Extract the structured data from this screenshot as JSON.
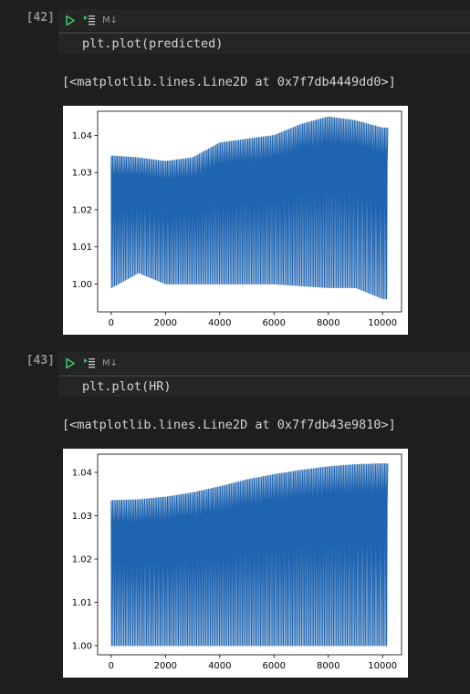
{
  "cells": [
    {
      "exec_count": "[42]",
      "toolbar": {
        "markdown_label": "M↓"
      },
      "code": "plt.plot(predicted)",
      "output_text": "[<matplotlib.lines.Line2D at 0x7f7db4449dd0>]",
      "chart_data": {
        "type": "line",
        "x": [
          0,
          1000,
          2000,
          3000,
          4000,
          5000,
          6000,
          7000,
          8000,
          9000,
          10000
        ],
        "series": [
          {
            "upper": [
              1.0345,
              1.034,
              1.033,
              1.034,
              1.038,
              1.039,
              1.04,
              1.043,
              1.045,
              1.044,
              1.042
            ],
            "lower": [
              0.999,
              1.003,
              1.0,
              1.0,
              1.0,
              1.0,
              1.0,
              0.9995,
              0.999,
              0.999,
              0.996
            ],
            "color": "#1f64b0"
          }
        ],
        "xlim": [
          -500,
          10700
        ],
        "ylim": [
          0.9925,
          1.0465
        ],
        "xticks": [
          "0",
          "2000",
          "4000",
          "6000",
          "8000",
          "10000"
        ],
        "yticks": [
          "1.00",
          "1.01",
          "1.02",
          "1.03",
          "1.04"
        ]
      }
    },
    {
      "exec_count": "[43]",
      "toolbar": {
        "markdown_label": "M↓"
      },
      "code": "plt.plot(HR)",
      "output_text": "[<matplotlib.lines.Line2D at 0x7f7db43e9810>]",
      "chart_data": {
        "type": "line",
        "x": [
          0,
          1000,
          2000,
          3000,
          4000,
          5000,
          6000,
          7000,
          8000,
          9000,
          10000
        ],
        "series": [
          {
            "upper": [
              1.0335,
              1.0337,
              1.0343,
              1.0353,
              1.0367,
              1.0383,
              1.0395,
              1.0405,
              1.0413,
              1.0418,
              1.042
            ],
            "lower": [
              1.0,
              1.0,
              1.0,
              1.0,
              1.0,
              1.0,
              1.0,
              1.0,
              1.0,
              1.0,
              1.0
            ],
            "color": "#1f64b0"
          }
        ],
        "xlim": [
          -500,
          10700
        ],
        "ylim": [
          0.9979,
          1.0442
        ],
        "xticks": [
          "0",
          "2000",
          "4000",
          "6000",
          "8000",
          "10000"
        ],
        "yticks": [
          "1.00",
          "1.01",
          "1.02",
          "1.03",
          "1.04"
        ]
      }
    }
  ]
}
